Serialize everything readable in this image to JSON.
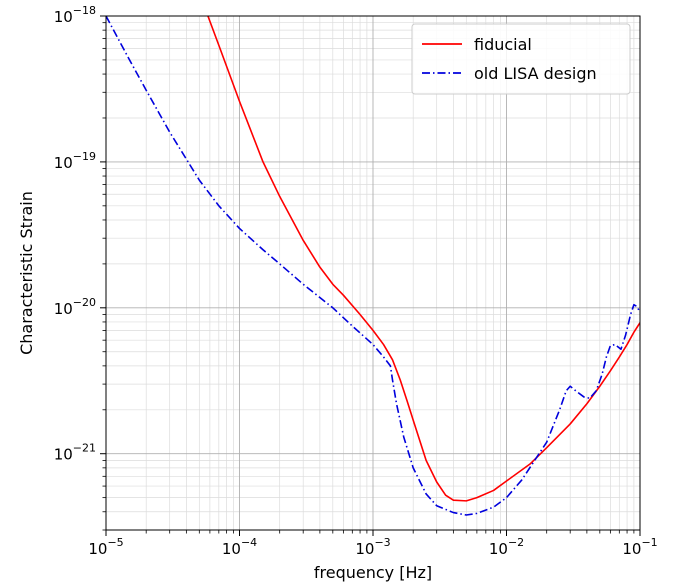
{
  "chart_data": {
    "type": "line",
    "xlabel": "frequency [Hz]",
    "ylabel": "Characteristic Strain",
    "x_scale": "log",
    "y_scale": "log",
    "xlim": [
      1e-05,
      0.1
    ],
    "ylim": [
      3e-22,
      1e-18
    ],
    "x_ticks": [
      {
        "value": 1e-05,
        "base": "10",
        "exp": "−5"
      },
      {
        "value": 0.0001,
        "base": "10",
        "exp": "−4"
      },
      {
        "value": 0.001,
        "base": "10",
        "exp": "−3"
      },
      {
        "value": 0.01,
        "base": "10",
        "exp": "−2"
      },
      {
        "value": 0.1,
        "base": "10",
        "exp": "−1"
      }
    ],
    "y_ticks": [
      {
        "value": 1e-21,
        "base": "10",
        "exp": "−21"
      },
      {
        "value": 1e-20,
        "base": "10",
        "exp": "−20"
      },
      {
        "value": 1e-19,
        "base": "10",
        "exp": "−19"
      },
      {
        "value": 1e-18,
        "base": "10",
        "exp": "−18"
      }
    ],
    "grid": true,
    "legend_position": "top-right",
    "series": [
      {
        "name": "fiducial",
        "color": "#ff0000",
        "dash": "solid",
        "points": [
          [
            5.8e-05,
            1e-18
          ],
          [
            7e-05,
            6.3e-19
          ],
          [
            0.0001,
            2.6e-19
          ],
          [
            0.00015,
            1e-19
          ],
          [
            0.0002,
            5.8e-20
          ],
          [
            0.0003,
            2.9e-20
          ],
          [
            0.0004,
            1.9e-20
          ],
          [
            0.0005,
            1.45e-20
          ],
          [
            0.0006,
            1.22e-20
          ],
          [
            0.0008,
            9e-21
          ],
          [
            0.001,
            7e-21
          ],
          [
            0.0012,
            5.6e-21
          ],
          [
            0.0014,
            4.4e-21
          ],
          [
            0.0016,
            3.2e-21
          ],
          [
            0.0018,
            2.3e-21
          ],
          [
            0.002,
            1.7e-21
          ],
          [
            0.0025,
            9e-22
          ],
          [
            0.003,
            6.4e-22
          ],
          [
            0.0035,
            5.2e-22
          ],
          [
            0.004,
            4.8e-22
          ],
          [
            0.005,
            4.75e-22
          ],
          [
            0.006,
            5e-22
          ],
          [
            0.008,
            5.6e-22
          ],
          [
            0.01,
            6.5e-22
          ],
          [
            0.015,
            8.5e-22
          ],
          [
            0.02,
            1.1e-21
          ],
          [
            0.03,
            1.6e-21
          ],
          [
            0.04,
            2.2e-21
          ],
          [
            0.05,
            2.9e-21
          ],
          [
            0.06,
            3.7e-21
          ],
          [
            0.07,
            4.6e-21
          ],
          [
            0.08,
            5.6e-21
          ],
          [
            0.09,
            6.8e-21
          ],
          [
            0.1,
            7.9e-21
          ]
        ]
      },
      {
        "name": "old LISA design",
        "color": "#0000dd",
        "dash": "dashdot",
        "points": [
          [
            1e-05,
            1e-18
          ],
          [
            1.5e-05,
            5e-19
          ],
          [
            2e-05,
            3.1e-19
          ],
          [
            3e-05,
            1.6e-19
          ],
          [
            5e-05,
            7.5e-20
          ],
          [
            7e-05,
            5e-20
          ],
          [
            0.0001,
            3.5e-20
          ],
          [
            0.00015,
            2.5e-20
          ],
          [
            0.0002,
            2e-20
          ],
          [
            0.0003,
            1.45e-20
          ],
          [
            0.0005,
            1e-20
          ],
          [
            0.0007,
            7.5e-21
          ],
          [
            0.001,
            5.6e-21
          ],
          [
            0.0012,
            4.6e-21
          ],
          [
            0.00135,
            4e-21
          ],
          [
            0.0014,
            3.2e-21
          ],
          [
            0.0015,
            2.2e-21
          ],
          [
            0.0017,
            1.3e-21
          ],
          [
            0.002,
            8e-22
          ],
          [
            0.0025,
            5.3e-22
          ],
          [
            0.003,
            4.4e-22
          ],
          [
            0.004,
            3.95e-22
          ],
          [
            0.005,
            3.8e-22
          ],
          [
            0.006,
            3.9e-22
          ],
          [
            0.008,
            4.3e-22
          ],
          [
            0.01,
            5e-22
          ],
          [
            0.013,
            6.6e-22
          ],
          [
            0.016,
            8.8e-22
          ],
          [
            0.02,
            1.2e-21
          ],
          [
            0.025,
            2e-21
          ],
          [
            0.028,
            2.7e-21
          ],
          [
            0.03,
            2.9e-21
          ],
          [
            0.033,
            2.7e-21
          ],
          [
            0.038,
            2.45e-21
          ],
          [
            0.042,
            2.4e-21
          ],
          [
            0.047,
            2.7e-21
          ],
          [
            0.052,
            3.5e-21
          ],
          [
            0.056,
            4.6e-21
          ],
          [
            0.06,
            5.5e-21
          ],
          [
            0.065,
            5.6e-21
          ],
          [
            0.072,
            5.2e-21
          ],
          [
            0.078,
            6.5e-21
          ],
          [
            0.085,
            9e-21
          ],
          [
            0.09,
            1.05e-20
          ],
          [
            0.095,
            1.02e-20
          ],
          [
            0.1,
            9.3e-21
          ]
        ]
      }
    ]
  }
}
